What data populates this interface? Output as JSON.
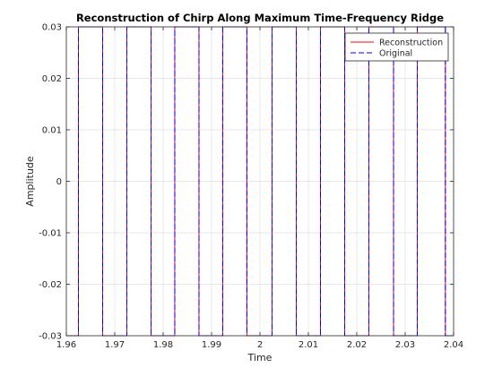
{
  "chart_data": {
    "type": "line",
    "title": "Reconstruction of Chirp Along Maximum Time-Frequency Ridge",
    "xlabel": "Time",
    "ylabel": "Amplitude",
    "xlim": [
      1.96,
      2.04
    ],
    "ylim": [
      -0.03,
      0.03
    ],
    "xticks": [
      1.96,
      1.97,
      1.98,
      1.99,
      2.0,
      2.01,
      2.02,
      2.03,
      2.04
    ],
    "xtick_labels": [
      "1.96",
      "1.97",
      "1.98",
      "1.99",
      "2",
      "2.01",
      "2.02",
      "2.03",
      "2.04"
    ],
    "yticks": [
      -0.03,
      -0.02,
      -0.01,
      0,
      0.01,
      0.02,
      0.03
    ],
    "ytick_labels": [
      "-0.03",
      "-0.02",
      "-0.01",
      "0",
      "0.01",
      "0.02",
      "0.03"
    ],
    "grid": true,
    "legend_position": "top-right",
    "series": [
      {
        "name": "Reconstruction",
        "color": "#ff0000",
        "style": "solid",
        "transitions_x": [
          1.9625,
          1.9675,
          1.9725,
          1.9775,
          1.9824,
          1.9874,
          1.9923,
          1.9973,
          2.0025,
          2.0075,
          2.0125,
          2.0175,
          2.0225,
          2.0276,
          2.0325,
          2.0383
        ],
        "high": 0.03,
        "low": -0.03
      },
      {
        "name": "Original",
        "color": "#0000ff",
        "style": "dashed",
        "transitions_x": [
          1.9625,
          1.9675,
          1.9725,
          1.9775,
          1.9824,
          1.9874,
          1.9923,
          1.9973,
          2.0025,
          2.0075,
          2.0125,
          2.0175,
          2.0225,
          2.0276,
          2.0325,
          2.0383
        ],
        "high": 0.03,
        "low": -0.03
      }
    ]
  }
}
